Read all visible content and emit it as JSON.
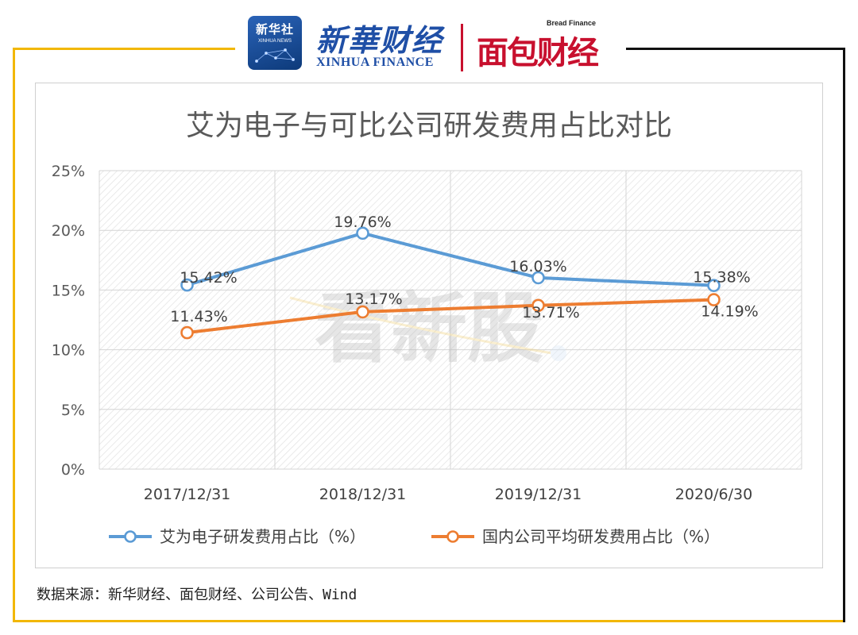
{
  "header": {
    "xinhua_badge_cn": "新华社",
    "xinhua_badge_en": "XINHUA NEWS",
    "xinhua_finance_cn": "新華财经",
    "xinhua_finance_en": "XINHUA FINANCE",
    "bread_finance_en": "Bread Finance",
    "bread_finance_cn": "面包财经"
  },
  "watermark": "看新股",
  "source": "数据来源：新华财经、面包财经、公司公告、Wind",
  "colors": {
    "series1": "#5B9BD5",
    "series2": "#ED7D31",
    "frame_yellow": "#F2B705",
    "frame_black": "#111111",
    "logo_blue": "#1F4FA6",
    "logo_red": "#C8102E"
  },
  "chart_data": {
    "type": "line",
    "title": "艾为电子与可比公司研发费用占比对比",
    "categories": [
      "2017/12/31",
      "2018/12/31",
      "2019/12/31",
      "2020/6/30"
    ],
    "series": [
      {
        "name": "艾为电子研发费用占比（%）",
        "values": [
          15.42,
          19.76,
          16.03,
          15.38
        ],
        "labels": [
          "15.42%",
          "19.76%",
          "16.03%",
          "15.38%"
        ]
      },
      {
        "name": "国内公司平均研发费用占比（%）",
        "values": [
          11.43,
          13.17,
          13.71,
          14.19
        ],
        "labels": [
          "11.43%",
          "13.17%",
          "13.71%",
          "14.19%"
        ]
      }
    ],
    "ylim": [
      0,
      25
    ],
    "yticks": [
      0,
      5,
      10,
      15,
      20,
      25
    ],
    "ytick_labels": [
      "0%",
      "5%",
      "10%",
      "15%",
      "20%",
      "25%"
    ],
    "grid": true,
    "legend": "bottom",
    "xlabel": "",
    "ylabel": ""
  }
}
